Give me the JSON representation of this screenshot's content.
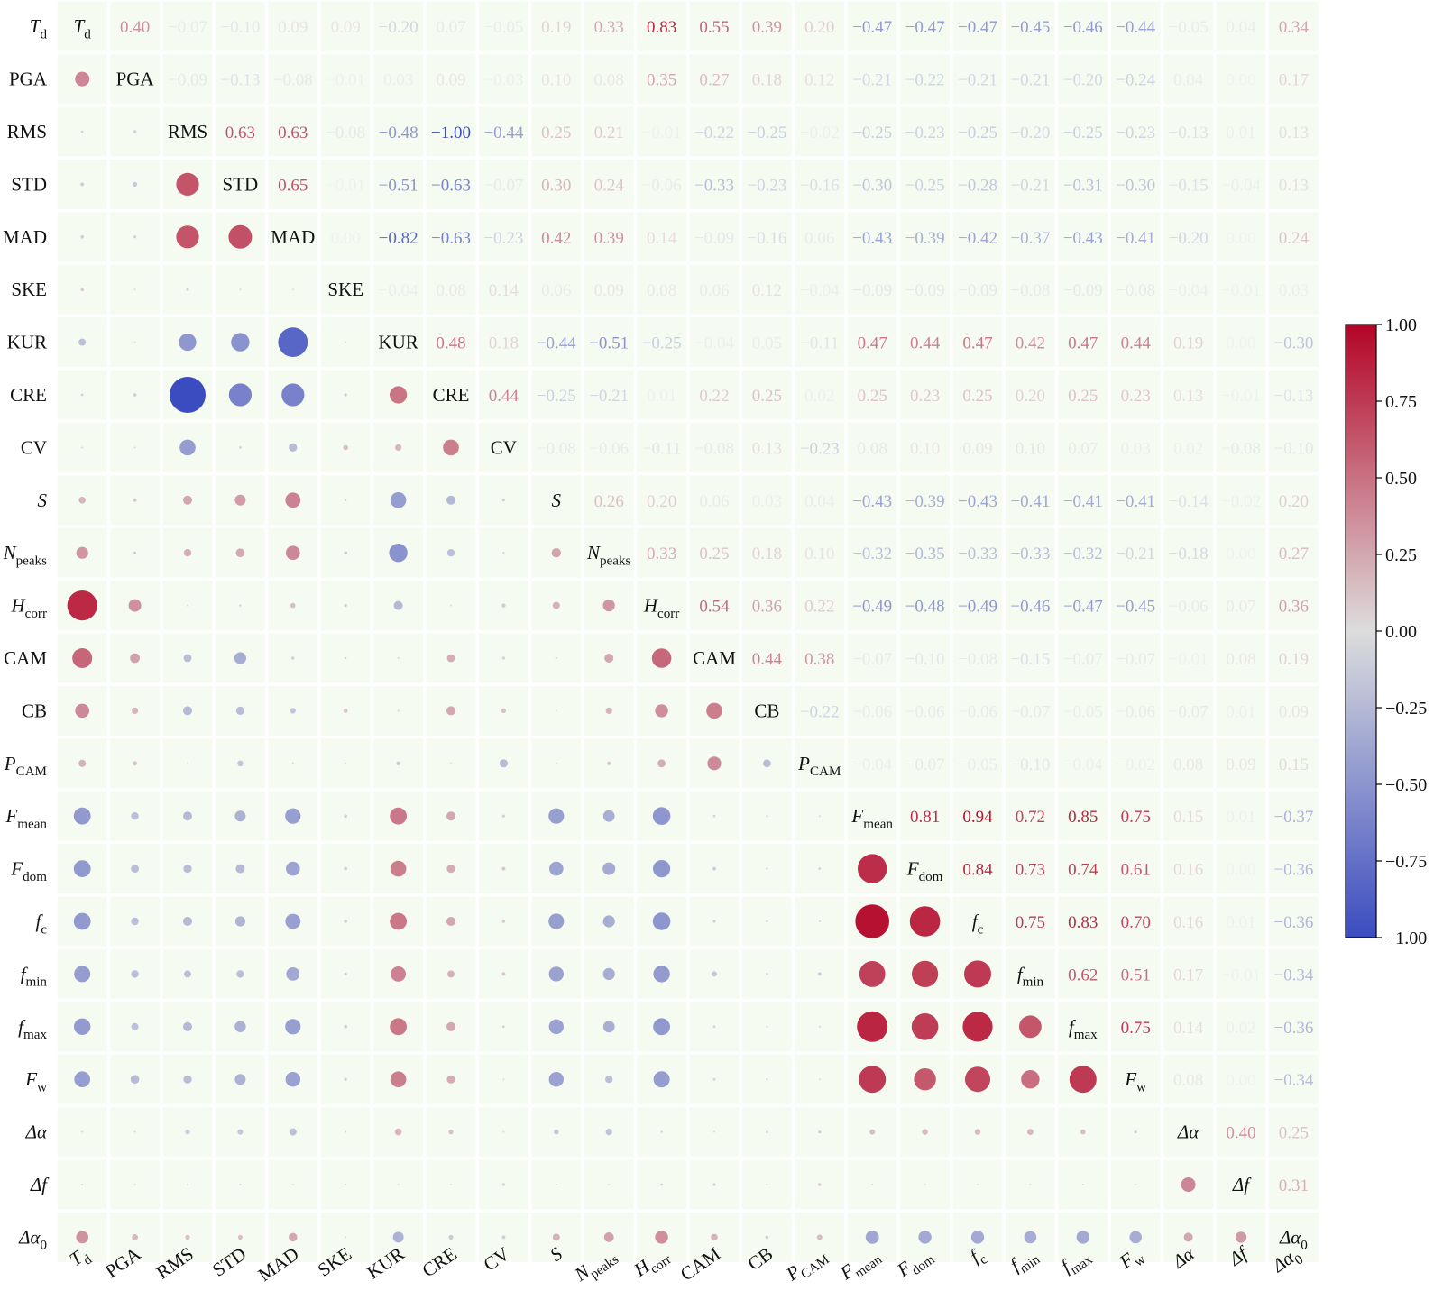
{
  "chart_data": {
    "type": "heatmap",
    "subtype": "correlation-matrix",
    "lower_triangle": "circles",
    "upper_triangle": "numbers",
    "diagonal": "variable-names",
    "variables": [
      {
        "base": "T",
        "sub": "d",
        "italic": true
      },
      {
        "base": "PGA",
        "sub": "",
        "italic": false
      },
      {
        "base": "RMS",
        "sub": "",
        "italic": false
      },
      {
        "base": "STD",
        "sub": "",
        "italic": false
      },
      {
        "base": "MAD",
        "sub": "",
        "italic": false
      },
      {
        "base": "SKE",
        "sub": "",
        "italic": false
      },
      {
        "base": "KUR",
        "sub": "",
        "italic": false
      },
      {
        "base": "CRE",
        "sub": "",
        "italic": false
      },
      {
        "base": "CV",
        "sub": "",
        "italic": false
      },
      {
        "base": "S",
        "sub": "",
        "italic": true
      },
      {
        "base": "N",
        "sub": "peaks",
        "italic": true
      },
      {
        "base": "H",
        "sub": "corr",
        "italic": true
      },
      {
        "base": "CAM",
        "sub": "",
        "italic": false
      },
      {
        "base": "CB",
        "sub": "",
        "italic": false
      },
      {
        "base": "P",
        "sub": "CAM",
        "italic": true
      },
      {
        "base": "F",
        "sub": "mean",
        "italic": true
      },
      {
        "base": "F",
        "sub": "dom",
        "italic": true
      },
      {
        "base": "f",
        "sub": "c",
        "italic": true
      },
      {
        "base": "f",
        "sub": "min",
        "italic": true
      },
      {
        "base": "f",
        "sub": "max",
        "italic": true
      },
      {
        "base": "F",
        "sub": "w",
        "italic": true
      },
      {
        "base": "Δα",
        "sub": "",
        "italic": true
      },
      {
        "base": "Δf",
        "sub": "",
        "italic": true
      },
      {
        "base": "Δα",
        "sub": "0",
        "italic": true
      }
    ],
    "upper_values": [
      [
        0.4,
        -0.07,
        -0.1,
        0.09,
        0.09,
        -0.2,
        0.07,
        -0.05,
        0.19,
        0.33,
        0.83,
        0.55,
        0.39,
        0.2,
        -0.47,
        -0.47,
        -0.47,
        -0.45,
        -0.46,
        -0.44,
        -0.05,
        0.04,
        0.34
      ],
      [
        -0.09,
        -0.13,
        -0.08,
        -0.01,
        0.03,
        0.09,
        -0.03,
        0.1,
        0.08,
        0.35,
        0.27,
        0.18,
        0.12,
        -0.21,
        -0.22,
        -0.21,
        -0.21,
        -0.2,
        -0.24,
        0.04,
        -0.0,
        0.17
      ],
      [
        0.63,
        0.63,
        -0.08,
        -0.48,
        -1.0,
        -0.44,
        0.25,
        0.21,
        -0.01,
        -0.22,
        -0.25,
        -0.02,
        -0.25,
        -0.23,
        -0.25,
        -0.2,
        -0.25,
        -0.23,
        -0.13,
        0.01,
        0.13
      ],
      [
        0.65,
        -0.01,
        -0.51,
        -0.63,
        -0.07,
        0.3,
        0.24,
        -0.06,
        -0.33,
        -0.23,
        -0.16,
        -0.3,
        -0.25,
        -0.28,
        -0.21,
        -0.31,
        -0.3,
        -0.15,
        -0.04,
        0.13
      ],
      [
        0.0,
        -0.82,
        -0.63,
        -0.23,
        0.42,
        0.39,
        0.14,
        -0.09,
        -0.16,
        0.06,
        -0.43,
        -0.39,
        -0.42,
        -0.37,
        -0.43,
        -0.41,
        -0.2,
        -0.0,
        0.24
      ],
      [
        -0.04,
        0.08,
        0.14,
        0.06,
        0.09,
        0.08,
        0.06,
        0.12,
        -0.04,
        -0.09,
        -0.09,
        -0.09,
        -0.08,
        -0.09,
        -0.08,
        -0.04,
        -0.01,
        0.03
      ],
      [
        0.48,
        0.18,
        -0.44,
        -0.51,
        -0.25,
        -0.04,
        0.05,
        -0.11,
        0.47,
        0.44,
        0.47,
        0.42,
        0.47,
        0.44,
        0.19,
        0.0,
        -0.3
      ],
      [
        0.44,
        -0.25,
        -0.21,
        0.01,
        0.22,
        0.25,
        0.02,
        0.25,
        0.23,
        0.25,
        0.2,
        0.25,
        0.23,
        0.13,
        -0.01,
        -0.13
      ],
      [
        -0.08,
        -0.06,
        -0.11,
        -0.08,
        0.13,
        -0.23,
        0.08,
        0.1,
        0.09,
        0.1,
        0.07,
        0.03,
        0.02,
        -0.08,
        -0.1
      ],
      [
        0.26,
        0.2,
        0.06,
        0.03,
        0.04,
        -0.43,
        -0.39,
        -0.43,
        -0.41,
        -0.41,
        -0.41,
        -0.14,
        -0.02,
        0.2
      ],
      [
        0.33,
        0.25,
        0.18,
        0.1,
        -0.32,
        -0.35,
        -0.33,
        -0.33,
        -0.32,
        -0.21,
        -0.18,
        -0.0,
        0.27
      ],
      [
        0.54,
        0.36,
        0.22,
        -0.49,
        -0.48,
        -0.49,
        -0.46,
        -0.47,
        -0.45,
        -0.06,
        0.07,
        0.36
      ],
      [
        0.44,
        0.38,
        -0.07,
        -0.1,
        -0.08,
        -0.15,
        -0.07,
        -0.07,
        -0.01,
        0.08,
        0.19
      ],
      [
        -0.22,
        -0.06,
        -0.06,
        -0.06,
        -0.07,
        -0.05,
        -0.06,
        -0.07,
        0.01,
        0.09
      ],
      [
        -0.04,
        -0.07,
        -0.05,
        -0.1,
        -0.04,
        -0.02,
        0.08,
        0.09,
        0.15
      ],
      [
        0.81,
        0.94,
        0.72,
        0.85,
        0.75,
        0.15,
        0.01,
        -0.37
      ],
      [
        0.84,
        0.73,
        0.74,
        0.61,
        0.16,
        0.0,
        -0.36
      ],
      [
        0.75,
        0.83,
        0.7,
        0.16,
        0.01,
        -0.36
      ],
      [
        0.62,
        0.51,
        0.17,
        -0.01,
        -0.34
      ],
      [
        0.75,
        0.14,
        0.02,
        -0.36
      ],
      [
        0.08,
        -0.0,
        -0.34
      ],
      [
        0.4,
        0.25
      ],
      [
        0.31
      ],
      []
    ],
    "colorbar": {
      "range": [
        -1,
        1
      ],
      "ticks": [
        "1.00",
        "0.75",
        "0.50",
        "0.25",
        "0.00",
        "−0.25",
        "−0.50",
        "−0.75",
        "−1.00"
      ],
      "colormap": "coolwarm",
      "colors": {
        "negative": "#3b4cc0",
        "neutral": "#dddddd",
        "positive": "#b40426"
      }
    },
    "title": "",
    "xlabel": "",
    "ylabel": ""
  }
}
